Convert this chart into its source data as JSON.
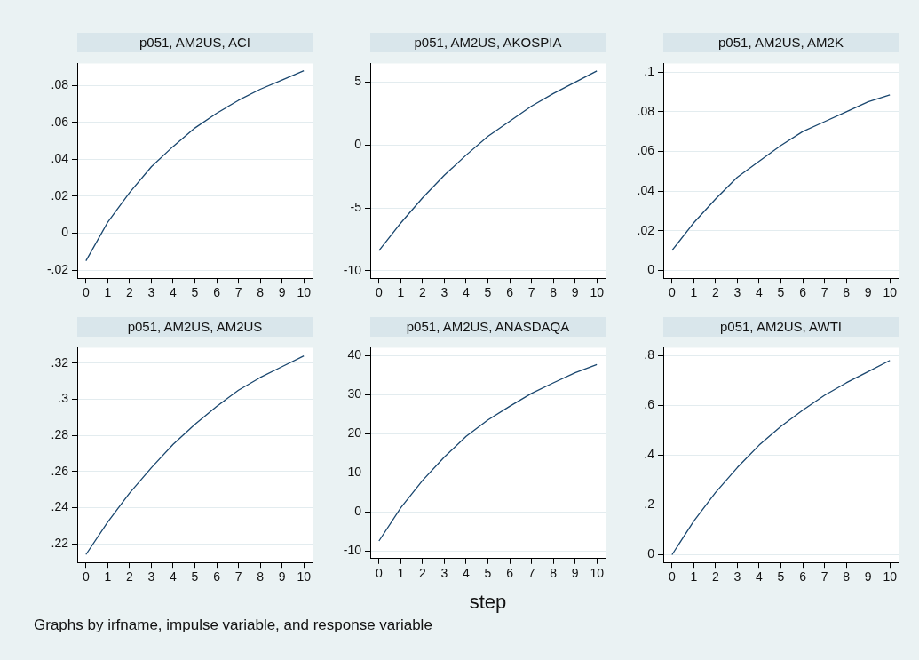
{
  "chart_data": [
    {
      "type": "line",
      "title": "p051, AM2US, ACI",
      "x": [
        0,
        1,
        2,
        3,
        4,
        5,
        6,
        7,
        8,
        9,
        10
      ],
      "xlim": [
        -0.4,
        10.4
      ],
      "xticks": [
        0,
        1,
        2,
        3,
        4,
        5,
        6,
        7,
        8,
        9,
        10
      ],
      "ylim": [
        -0.0244,
        0.092
      ],
      "yticks": [
        {
          "value": -0.02,
          "label": "-.02"
        },
        0,
        {
          "value": 0.02,
          "label": ".02"
        },
        {
          "value": 0.04,
          "label": ".04"
        },
        {
          "value": 0.06,
          "label": ".06"
        },
        {
          "value": 0.08,
          "label": ".08"
        }
      ],
      "grid": "y",
      "series": [
        {
          "color": "#1a476f",
          "values": [
            -0.015,
            0.006,
            0.022,
            0.036,
            0.047,
            0.057,
            0.065,
            0.072,
            0.078,
            0.083,
            0.088
          ]
        }
      ]
    },
    {
      "type": "line",
      "title": "p051, AM2US, AKOSPIA",
      "x": [
        0,
        1,
        2,
        3,
        4,
        5,
        6,
        7,
        8,
        9,
        10
      ],
      "xlim": [
        -0.4,
        10.4
      ],
      "xticks": [
        0,
        1,
        2,
        3,
        4,
        5,
        6,
        7,
        8,
        9,
        10
      ],
      "ylim": [
        -10.6,
        6.5
      ],
      "yticks": [
        -10,
        -5,
        0,
        5
      ],
      "grid": "y",
      "series": [
        {
          "color": "#1a476f",
          "values": [
            -8.4,
            -6.2,
            -4.2,
            -2.4,
            -0.8,
            0.7,
            1.9,
            3.1,
            4.1,
            5.0,
            5.9
          ]
        }
      ]
    },
    {
      "type": "line",
      "title": "p051, AM2US, AM2K",
      "x": [
        0,
        1,
        2,
        3,
        4,
        5,
        6,
        7,
        8,
        9,
        10
      ],
      "xlim": [
        -0.4,
        10.4
      ],
      "xticks": [
        0,
        1,
        2,
        3,
        4,
        5,
        6,
        7,
        8,
        9,
        10
      ],
      "ylim": [
        -0.004,
        0.1044
      ],
      "yticks": [
        0,
        {
          "value": 0.02,
          "label": ".02"
        },
        {
          "value": 0.04,
          "label": ".04"
        },
        {
          "value": 0.06,
          "label": ".06"
        },
        {
          "value": 0.08,
          "label": ".08"
        },
        {
          "value": 0.1,
          "label": ".1"
        }
      ],
      "grid": "y",
      "series": [
        {
          "color": "#1a476f",
          "values": [
            0.01,
            0.024,
            0.036,
            0.047,
            0.055,
            0.063,
            0.07,
            0.075,
            0.08,
            0.085,
            0.0885
          ]
        }
      ]
    },
    {
      "type": "line",
      "title": "p051, AM2US, AM2US",
      "x": [
        0,
        1,
        2,
        3,
        4,
        5,
        6,
        7,
        8,
        9,
        10
      ],
      "xlim": [
        -0.4,
        10.4
      ],
      "xticks": [
        0,
        1,
        2,
        3,
        4,
        5,
        6,
        7,
        8,
        9,
        10
      ],
      "ylim": [
        0.2096,
        0.3285
      ],
      "yticks": [
        {
          "value": 0.22,
          "label": ".22"
        },
        {
          "value": 0.24,
          "label": ".24"
        },
        {
          "value": 0.26,
          "label": ".26"
        },
        {
          "value": 0.28,
          "label": ".28"
        },
        {
          "value": 0.3,
          "label": ".3"
        },
        {
          "value": 0.32,
          "label": ".32"
        }
      ],
      "grid": "y",
      "annotations": [
        "Graphs by irfname, impulse variable, and response variable"
      ],
      "series": [
        {
          "color": "#1a476f",
          "values": [
            0.214,
            0.232,
            0.248,
            0.262,
            0.275,
            0.286,
            0.296,
            0.305,
            0.312,
            0.318,
            0.324
          ]
        }
      ]
    },
    {
      "type": "line",
      "title": "p051, AM2US, ANASDAQA",
      "xlabel": "step",
      "x": [
        0,
        1,
        2,
        3,
        4,
        5,
        6,
        7,
        8,
        9,
        10
      ],
      "xlim": [
        -0.4,
        10.4
      ],
      "xticks": [
        0,
        1,
        2,
        3,
        4,
        5,
        6,
        7,
        8,
        9,
        10
      ],
      "ylim": [
        -12,
        42
      ],
      "yticks": [
        -10,
        0,
        10,
        20,
        30,
        40
      ],
      "grid": "y",
      "series": [
        {
          "color": "#1a476f",
          "values": [
            -7.5,
            1,
            8,
            14,
            19.3,
            23.5,
            27,
            30.3,
            33,
            35.6,
            37.7
          ]
        }
      ]
    },
    {
      "type": "line",
      "title": "p051, AM2US, AWTI",
      "x": [
        0,
        1,
        2,
        3,
        4,
        5,
        6,
        7,
        8,
        9,
        10
      ],
      "xlim": [
        -0.4,
        10.4
      ],
      "xticks": [
        0,
        1,
        2,
        3,
        4,
        5,
        6,
        7,
        8,
        9,
        10
      ],
      "ylim": [
        -0.031,
        0.831
      ],
      "yticks": [
        0,
        {
          "value": 0.2,
          "label": ".2"
        },
        {
          "value": 0.4,
          "label": ".4"
        },
        {
          "value": 0.6,
          "label": ".6"
        },
        {
          "value": 0.8,
          "label": ".8"
        }
      ],
      "grid": "y",
      "series": [
        {
          "color": "#1a476f",
          "values": [
            0,
            0.135,
            0.25,
            0.35,
            0.44,
            0.515,
            0.58,
            0.64,
            0.69,
            0.735,
            0.78
          ]
        }
      ]
    }
  ]
}
